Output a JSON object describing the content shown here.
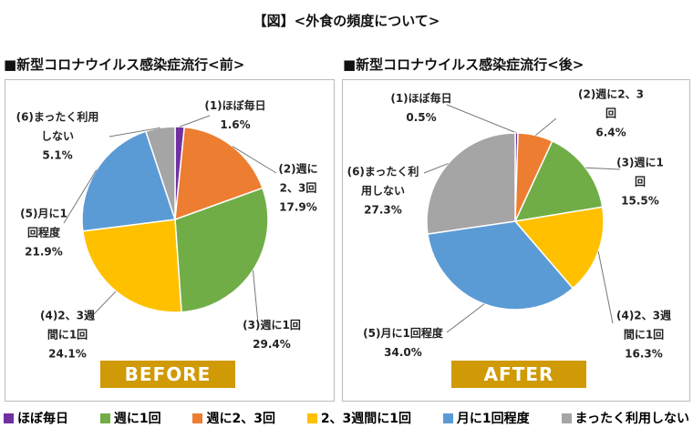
{
  "title": "【図】<外食の頻度について>",
  "legend": [
    {
      "name": "ほぼ毎日",
      "color": "#7030a0"
    },
    {
      "name": "週に1回",
      "color": "#70ad47"
    },
    {
      "name": "週に2、3回",
      "color": "#ed7d31"
    },
    {
      "name": "2、3週間に1回",
      "color": "#ffc000"
    },
    {
      "name": "月に1回程度",
      "color": "#5b9bd5"
    },
    {
      "name": "まったく利用しない",
      "color": "#a5a5a5"
    }
  ],
  "chart_data": [
    {
      "type": "pie",
      "title": "■新型コロナウイルス感染症流行<前>",
      "badge": "BEFORE",
      "categories": [
        "(1)ほぼ毎日",
        "(2)週に2、3回",
        "(3)週に1回",
        "(4)2、3週間に1回",
        "(5)月に1回程度",
        "(6)まったく利用しない"
      ],
      "values": [
        1.6,
        17.9,
        29.4,
        24.1,
        21.9,
        5.1
      ],
      "value_labels": [
        "1.6%",
        "17.9%",
        "29.4%",
        "24.1%",
        "21.9%",
        "5.1%"
      ],
      "colors": [
        "#7030a0",
        "#ed7d31",
        "#70ad47",
        "#ffc000",
        "#5b9bd5",
        "#a5a5a5"
      ]
    },
    {
      "type": "pie",
      "title": "■新型コロナウイルス感染症流行<後>",
      "badge": "AFTER",
      "categories": [
        "(1)ほぼ毎日",
        "(2)週に2、3回",
        "(3)週に1回",
        "(4)2、3週間に1回",
        "(5)月に1回程度",
        "(6)まったく利用しない"
      ],
      "values": [
        0.5,
        6.4,
        15.5,
        16.3,
        34.0,
        27.3
      ],
      "value_labels": [
        "0.5%",
        "6.4%",
        "15.5%",
        "16.3%",
        "34.0%",
        "27.3%"
      ],
      "colors": [
        "#7030a0",
        "#ed7d31",
        "#70ad47",
        "#ffc000",
        "#5b9bd5",
        "#a5a5a5"
      ]
    }
  ]
}
